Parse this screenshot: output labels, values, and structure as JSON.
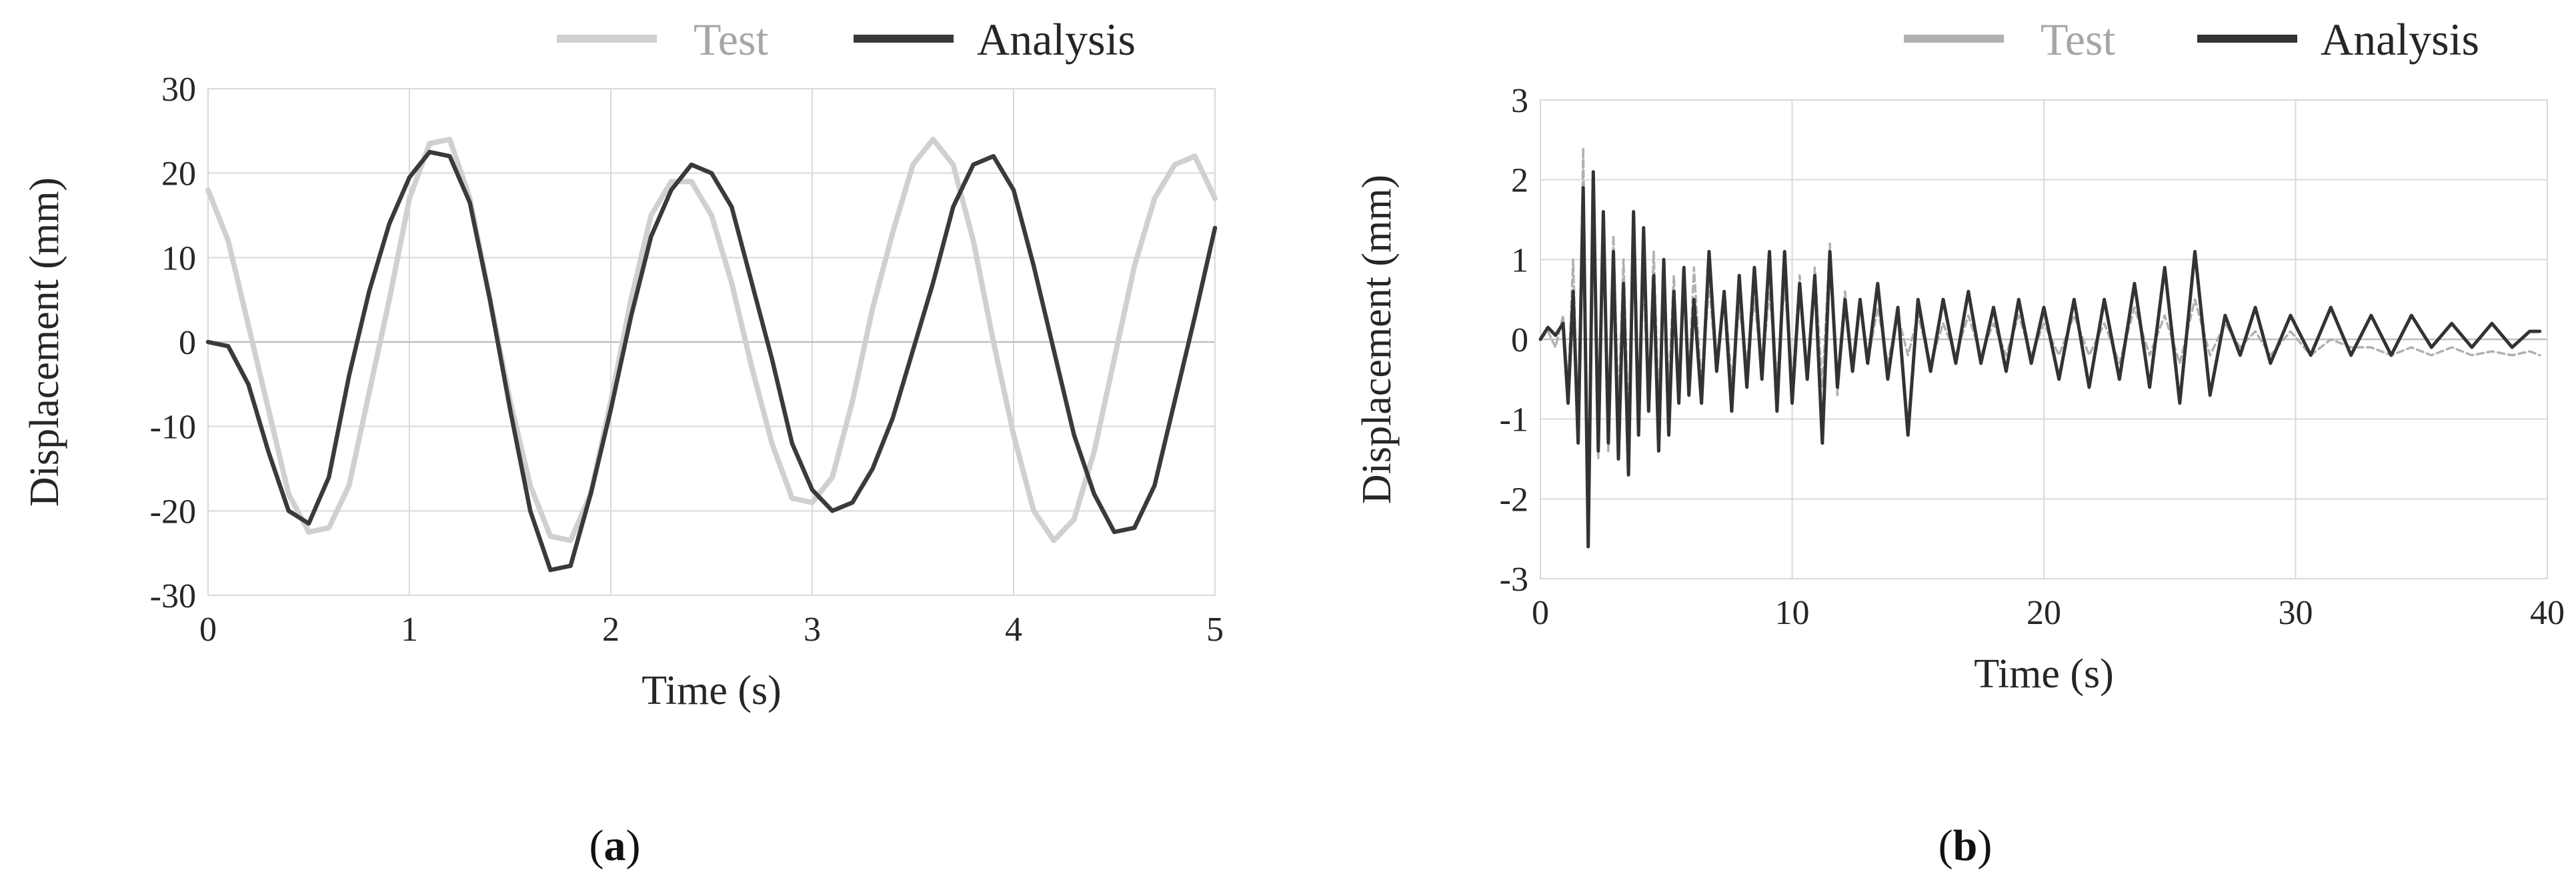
{
  "chart_data": [
    {
      "type": "line",
      "panel_label": "a",
      "title": "",
      "xlabel": "Time (s)",
      "ylabel": "Displacement (mm)",
      "xlim": [
        0,
        5
      ],
      "ylim": [
        -30,
        30
      ],
      "xticks": [
        0,
        1,
        2,
        3,
        4,
        5
      ],
      "yticks": [
        30,
        20,
        10,
        0,
        -10,
        -20,
        -30
      ],
      "grid": true,
      "legend": "top-right",
      "series": [
        {
          "name": "Test",
          "color": "#d0d0d0",
          "x": [
            0,
            0.1,
            0.2,
            0.3,
            0.4,
            0.5,
            0.6,
            0.7,
            0.8,
            0.9,
            1.0,
            1.1,
            1.2,
            1.3,
            1.4,
            1.5,
            1.6,
            1.7,
            1.8,
            1.9,
            2.0,
            2.1,
            2.2,
            2.3,
            2.4,
            2.5,
            2.6,
            2.7,
            2.8,
            2.9,
            3.0,
            3.1,
            3.2,
            3.3,
            3.4,
            3.5,
            3.6,
            3.7,
            3.8,
            3.9,
            4.0,
            4.1,
            4.2,
            4.3,
            4.4,
            4.5,
            4.6,
            4.7,
            4.8,
            4.9,
            5.0
          ],
          "y": [
            18,
            12,
            2,
            -8,
            -18,
            -22.5,
            -22,
            -17,
            -6,
            5,
            17,
            23.5,
            24,
            17,
            5,
            -7,
            -17,
            -23,
            -23.5,
            -18,
            -7,
            5,
            15,
            19,
            19,
            15,
            7,
            -3,
            -12,
            -18.5,
            -19,
            -16,
            -7,
            4,
            13,
            21,
            24,
            21,
            12,
            0,
            -11,
            -20,
            -23.5,
            -21,
            -13,
            -2,
            9,
            17,
            21,
            22,
            17
          ]
        },
        {
          "name": "Analysis",
          "color": "#3a3a3a",
          "x": [
            0,
            0.1,
            0.2,
            0.3,
            0.4,
            0.5,
            0.6,
            0.7,
            0.8,
            0.9,
            1.0,
            1.1,
            1.2,
            1.3,
            1.4,
            1.5,
            1.6,
            1.7,
            1.8,
            1.9,
            2.0,
            2.1,
            2.2,
            2.3,
            2.4,
            2.5,
            2.6,
            2.7,
            2.8,
            2.9,
            3.0,
            3.1,
            3.2,
            3.3,
            3.4,
            3.5,
            3.6,
            3.7,
            3.8,
            3.9,
            4.0,
            4.1,
            4.2,
            4.3,
            4.4,
            4.5,
            4.6,
            4.7,
            4.8,
            4.9,
            5.0
          ],
          "y": [
            0,
            -0.5,
            -5,
            -13,
            -20,
            -21.5,
            -16,
            -4,
            6,
            14,
            19.5,
            22.5,
            22,
            16.5,
            5,
            -8,
            -20,
            -27,
            -26.5,
            -18,
            -8,
            3,
            12.5,
            18,
            21,
            20,
            16,
            7,
            -2,
            -12,
            -17.5,
            -20,
            -19,
            -15,
            -9,
            -1,
            7,
            16,
            21,
            22,
            18,
            9,
            -1,
            -11,
            -18,
            -22.5,
            -22,
            -17,
            -7,
            3,
            13.5
          ]
        }
      ]
    },
    {
      "type": "line",
      "panel_label": "b",
      "title": "",
      "xlabel": "Time (s)",
      "ylabel": "Displacement (mm)",
      "xlim": [
        0,
        40
      ],
      "ylim": [
        -3,
        3
      ],
      "xticks": [
        0,
        10,
        20,
        30,
        40
      ],
      "yticks": [
        3,
        2,
        1,
        0,
        -1,
        -2,
        -3
      ],
      "grid": true,
      "legend": "top-right",
      "series": [
        {
          "name": "Test",
          "color": "#b0b0b0",
          "x": [
            0,
            0.3,
            0.6,
            0.9,
            1.1,
            1.3,
            1.5,
            1.7,
            1.9,
            2.1,
            2.3,
            2.5,
            2.7,
            2.9,
            3.1,
            3.3,
            3.5,
            3.7,
            3.9,
            4.1,
            4.3,
            4.5,
            4.7,
            4.9,
            5.1,
            5.3,
            5.5,
            5.7,
            5.9,
            6.1,
            6.4,
            6.7,
            7.0,
            7.3,
            7.6,
            7.9,
            8.2,
            8.5,
            8.8,
            9.1,
            9.4,
            9.7,
            10.0,
            10.3,
            10.6,
            10.9,
            11.2,
            11.5,
            11.8,
            12.1,
            12.4,
            12.7,
            13.0,
            13.4,
            13.8,
            14.2,
            14.6,
            15.0,
            15.5,
            16.0,
            16.5,
            17.0,
            17.5,
            18.0,
            18.5,
            19.0,
            19.5,
            20.0,
            20.6,
            21.2,
            21.8,
            22.4,
            23.0,
            23.6,
            24.2,
            24.8,
            25.4,
            26.0,
            26.6,
            27.2,
            27.8,
            28.4,
            29.0,
            29.8,
            30.6,
            31.4,
            32.2,
            33.0,
            33.8,
            34.6,
            35.4,
            36.2,
            37.0,
            37.8,
            38.6,
            39.3,
            39.7
          ],
          "y": [
            0,
            0.1,
            -0.1,
            0.3,
            -0.6,
            1.0,
            -1.2,
            2.4,
            -2.2,
            1.6,
            -1.5,
            1.2,
            -1.4,
            1.3,
            -0.9,
            1.0,
            -1.1,
            0.9,
            -0.7,
            0.8,
            -0.9,
            1.1,
            -0.8,
            0.7,
            -0.6,
            0.8,
            -0.7,
            0.6,
            -0.5,
            0.9,
            -0.6,
            0.7,
            -0.4,
            0.6,
            -0.5,
            0.4,
            -0.3,
            0.5,
            -0.4,
            0.6,
            -0.5,
            0.7,
            -0.6,
            0.8,
            -0.5,
            0.9,
            -0.6,
            1.2,
            -0.7,
            0.6,
            -0.4,
            0.5,
            -0.3,
            0.4,
            -0.3,
            0.3,
            -0.2,
            0.3,
            -0.3,
            0.2,
            -0.2,
            0.3,
            -0.2,
            0.2,
            -0.2,
            0.3,
            -0.2,
            0.2,
            -0.2,
            0.3,
            -0.2,
            0.2,
            -0.3,
            0.4,
            -0.2,
            0.3,
            -0.3,
            0.5,
            -0.2,
            0.2,
            -0.1,
            0.1,
            -0.2,
            0.1,
            -0.2,
            0.0,
            -0.1,
            -0.1,
            -0.2,
            -0.1,
            -0.2,
            -0.1,
            -0.2,
            -0.15,
            -0.2,
            -0.15,
            -0.2
          ]
        },
        {
          "name": "Analysis",
          "color": "#333333",
          "x": [
            0,
            0.3,
            0.6,
            0.9,
            1.1,
            1.3,
            1.5,
            1.7,
            1.9,
            2.1,
            2.3,
            2.5,
            2.7,
            2.9,
            3.1,
            3.3,
            3.5,
            3.7,
            3.9,
            4.1,
            4.3,
            4.5,
            4.7,
            4.9,
            5.1,
            5.3,
            5.5,
            5.7,
            5.9,
            6.1,
            6.4,
            6.7,
            7.0,
            7.3,
            7.6,
            7.9,
            8.2,
            8.5,
            8.8,
            9.1,
            9.4,
            9.7,
            10.0,
            10.3,
            10.6,
            10.9,
            11.2,
            11.5,
            11.8,
            12.1,
            12.4,
            12.7,
            13.0,
            13.4,
            13.8,
            14.2,
            14.6,
            15.0,
            15.5,
            16.0,
            16.5,
            17.0,
            17.5,
            18.0,
            18.5,
            19.0,
            19.5,
            20.0,
            20.6,
            21.2,
            21.8,
            22.4,
            23.0,
            23.6,
            24.2,
            24.8,
            25.4,
            26.0,
            26.6,
            27.2,
            27.8,
            28.4,
            29.0,
            29.8,
            30.6,
            31.4,
            32.2,
            33.0,
            33.8,
            34.6,
            35.4,
            36.2,
            37.0,
            37.8,
            38.6,
            39.3,
            39.7
          ],
          "y": [
            0,
            0.15,
            0.05,
            0.2,
            -0.8,
            0.6,
            -1.3,
            1.9,
            -2.6,
            2.1,
            -1.4,
            1.6,
            -1.3,
            1.1,
            -1.5,
            0.7,
            -1.7,
            1.6,
            -1.2,
            1.4,
            -0.9,
            0.8,
            -1.4,
            1.0,
            -1.2,
            0.6,
            -0.8,
            0.9,
            -0.7,
            0.5,
            -0.8,
            1.1,
            -0.4,
            0.6,
            -0.9,
            0.8,
            -0.6,
            0.9,
            -0.5,
            1.1,
            -0.9,
            1.1,
            -0.8,
            0.7,
            -0.5,
            0.8,
            -1.3,
            1.1,
            -0.6,
            0.5,
            -0.4,
            0.5,
            -0.3,
            0.7,
            -0.5,
            0.4,
            -1.2,
            0.5,
            -0.4,
            0.5,
            -0.3,
            0.6,
            -0.3,
            0.4,
            -0.4,
            0.5,
            -0.3,
            0.4,
            -0.5,
            0.5,
            -0.6,
            0.5,
            -0.5,
            0.7,
            -0.6,
            0.9,
            -0.8,
            1.1,
            -0.7,
            0.3,
            -0.2,
            0.4,
            -0.3,
            0.3,
            -0.2,
            0.4,
            -0.2,
            0.3,
            -0.2,
            0.3,
            -0.1,
            0.2,
            -0.1,
            0.2,
            -0.1,
            0.1,
            0.1
          ]
        }
      ]
    }
  ]
}
